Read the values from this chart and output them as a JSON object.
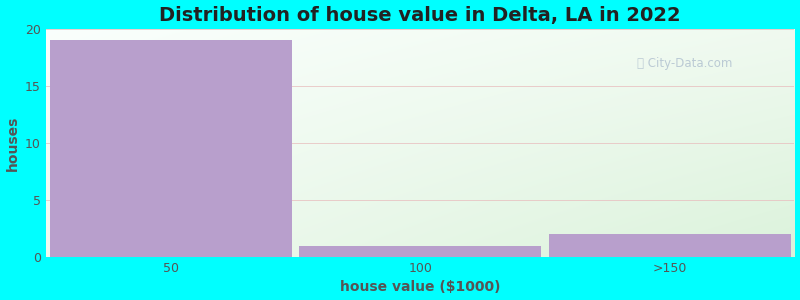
{
  "categories": [
    "50",
    "100",
    ">150"
  ],
  "values": [
    19,
    1,
    2
  ],
  "bar_color": "#b89fcc",
  "title": "Distribution of house value in Delta, LA in 2022",
  "xlabel": "house value ($1000)",
  "ylabel": "houses",
  "ylim": [
    0,
    20
  ],
  "yticks": [
    0,
    5,
    10,
    15,
    20
  ],
  "bg_color": "#00ffff",
  "grid_color": "#e8c0c0",
  "title_fontsize": 14,
  "label_fontsize": 10,
  "tick_fontsize": 9,
  "bar_width": 0.97
}
